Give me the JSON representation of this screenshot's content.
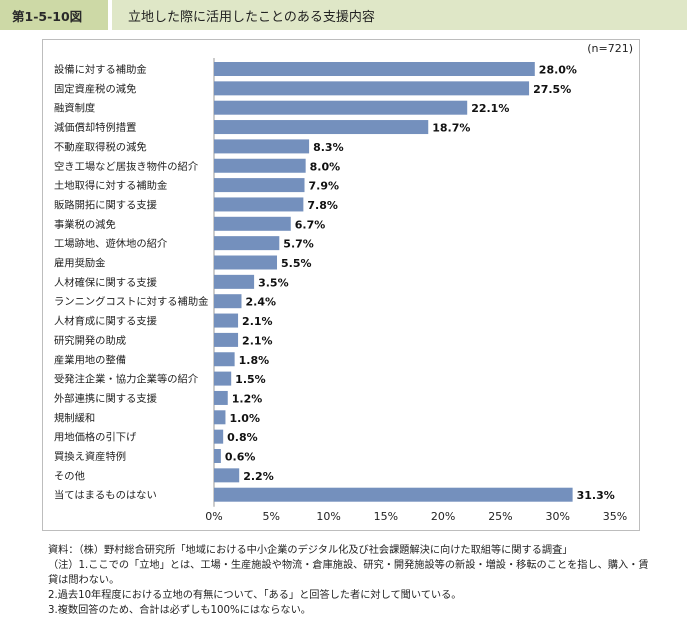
{
  "figure": {
    "number": "第1-5-10図",
    "title": "立地した際に活用したことのある支援内容"
  },
  "chart_data": {
    "type": "bar",
    "orientation": "horizontal",
    "sample_label": "(n=721)",
    "categories": [
      "設備に対する補助金",
      "固定資産税の減免",
      "融資制度",
      "減価償却特例措置",
      "不動産取得税の減免",
      "空き工場など居抜き物件の紹介",
      "土地取得に対する補助金",
      "販路開拓に関する支援",
      "事業税の減免",
      "工場跡地、遊休地の紹介",
      "雇用奨励金",
      "人材確保に関する支援",
      "ランニングコストに対する補助金",
      "人材育成に関する支援",
      "研究開発の助成",
      "産業用地の整備",
      "受発注企業・協力企業等の紹介",
      "外部連携に関する支援",
      "規制緩和",
      "用地価格の引下げ",
      "買換え資産特例",
      "その他",
      "当てはまるものはない"
    ],
    "values": [
      28.0,
      27.5,
      22.1,
      18.7,
      8.3,
      8.0,
      7.9,
      7.8,
      6.7,
      5.7,
      5.5,
      3.5,
      2.4,
      2.1,
      2.1,
      1.8,
      1.5,
      1.2,
      1.0,
      0.8,
      0.6,
      2.2,
      31.3
    ],
    "value_labels": [
      "28.0%",
      "27.5%",
      "22.1%",
      "18.7%",
      "8.3%",
      "8.0%",
      "7.9%",
      "7.8%",
      "6.7%",
      "5.7%",
      "5.5%",
      "3.5%",
      "2.4%",
      "2.1%",
      "2.1%",
      "1.8%",
      "1.5%",
      "1.2%",
      "1.0%",
      "0.8%",
      "0.6%",
      "2.2%",
      "31.3%"
    ],
    "xlim": [
      0,
      35
    ],
    "xticks": [
      0,
      5,
      10,
      15,
      20,
      25,
      30,
      35
    ],
    "xtick_labels": [
      "0%",
      "5%",
      "10%",
      "15%",
      "20%",
      "25%",
      "30%",
      "35%"
    ],
    "bar_color": "#7490bd",
    "grid": false
  },
  "notes": {
    "source": "資料：（株）野村総合研究所「地域における中小企業のデジタル化及び社会課題解決に向けた取組等に関する調査」",
    "note1_line1": "（注）1.ここでの「立地」とは、工場・生産施設や物流・倉庫施設、研究・開発施設等の新設・増設・移転のことを指し、購入・賃",
    "note1_line2": "貸は問わない。",
    "note2": "2.過去10年程度における立地の有無について、「ある」と回答した者に対して聞いている。",
    "note3": "3.複数回答のため、合計は必ずしも100%にはならない。"
  }
}
